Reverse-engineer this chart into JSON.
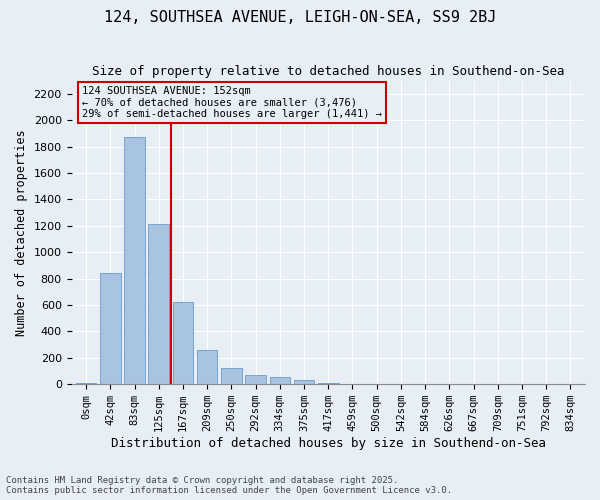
{
  "title1": "124, SOUTHSEA AVENUE, LEIGH-ON-SEA, SS9 2BJ",
  "title2": "Size of property relative to detached houses in Southend-on-Sea",
  "xlabel": "Distribution of detached houses by size in Southend-on-Sea",
  "ylabel": "Number of detached properties",
  "bar_color": "#a8c4e0",
  "bar_edge_color": "#5a8fc0",
  "bg_color": "#e8eef5",
  "grid_color": "#ffffff",
  "annotation_box_color": "#cc0000",
  "vline_color": "#cc0000",
  "categories": [
    "0sqm",
    "42sqm",
    "83sqm",
    "125sqm",
    "167sqm",
    "209sqm",
    "250sqm",
    "292sqm",
    "334sqm",
    "375sqm",
    "417sqm",
    "459sqm",
    "500sqm",
    "542sqm",
    "584sqm",
    "626sqm",
    "667sqm",
    "709sqm",
    "751sqm",
    "792sqm",
    "834sqm"
  ],
  "values": [
    10,
    840,
    1870,
    1210,
    620,
    260,
    120,
    70,
    55,
    30,
    10,
    0,
    5,
    0,
    0,
    0,
    0,
    0,
    0,
    0,
    0
  ],
  "ylim": [
    0,
    2300
  ],
  "yticks": [
    0,
    200,
    400,
    600,
    800,
    1000,
    1200,
    1400,
    1600,
    1800,
    2000,
    2200
  ],
  "property_line_x": 3.5,
  "annotation_text": "124 SOUTHSEA AVENUE: 152sqm\n← 70% of detached houses are smaller (3,476)\n29% of semi-detached houses are larger (1,441) →",
  "footer": "Contains HM Land Registry data © Crown copyright and database right 2025.\nContains public sector information licensed under the Open Government Licence v3.0."
}
